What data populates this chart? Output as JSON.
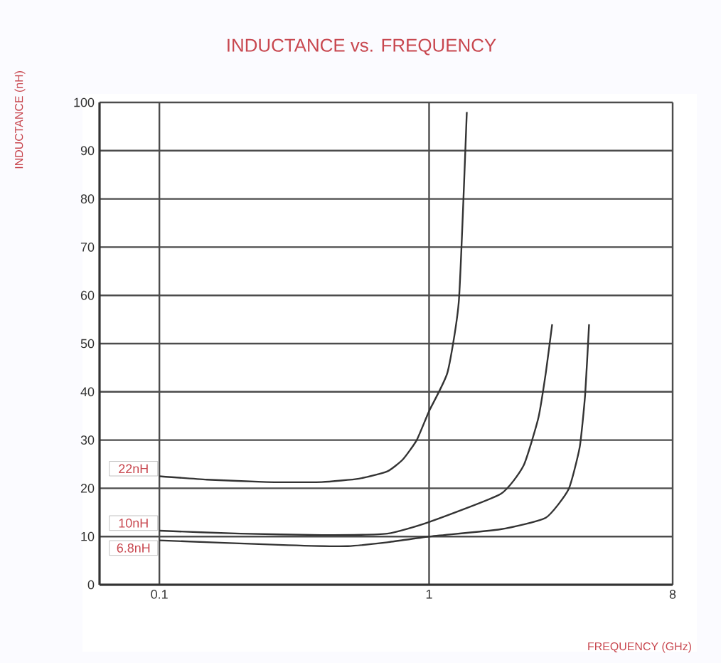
{
  "chart_data": {
    "type": "line",
    "title": "INDUCTANCE vs. FREQUENCY",
    "xlabel": "FREQUENCY (GHz)",
    "ylabel": "INDUCTANCE (nH)",
    "log": "x",
    "grid": true,
    "xlim": [
      0.06,
      8
    ],
    "xticks": [
      0.1,
      1,
      8
    ],
    "ylim": [
      0,
      100
    ],
    "yticks": [
      0,
      10,
      20,
      30,
      40,
      50,
      60,
      70,
      80,
      90,
      100
    ],
    "series": [
      {
        "name": "22nH",
        "color": "#333333",
        "x": [
          0.1,
          0.15,
          0.25,
          0.4,
          0.55,
          0.7,
          0.8,
          0.9,
          1.0,
          1.17,
          1.29,
          1.38
        ],
        "values": [
          22.5,
          21.8,
          21.3,
          21.3,
          22,
          23.5,
          26,
          30,
          36,
          44,
          59,
          98
        ]
      },
      {
        "name": "10nH",
        "color": "#333333",
        "x": [
          0.1,
          0.2,
          0.4,
          0.7,
          1.0,
          1.84,
          2.24,
          2.54,
          2.71,
          2.86
        ],
        "values": [
          11.2,
          10.6,
          10.3,
          10.6,
          13,
          18.8,
          24.7,
          34.5,
          44,
          54
        ]
      },
      {
        "name": "6.8nH",
        "color": "#333333",
        "x": [
          0.1,
          0.3,
          0.5,
          0.7,
          1.0,
          1.84,
          2.71,
          3.29,
          3.62,
          3.79,
          3.92
        ],
        "values": [
          9.2,
          8.2,
          8,
          8.8,
          10,
          11.5,
          13.9,
          19.8,
          28.6,
          39.4,
          54
        ]
      }
    ]
  }
}
